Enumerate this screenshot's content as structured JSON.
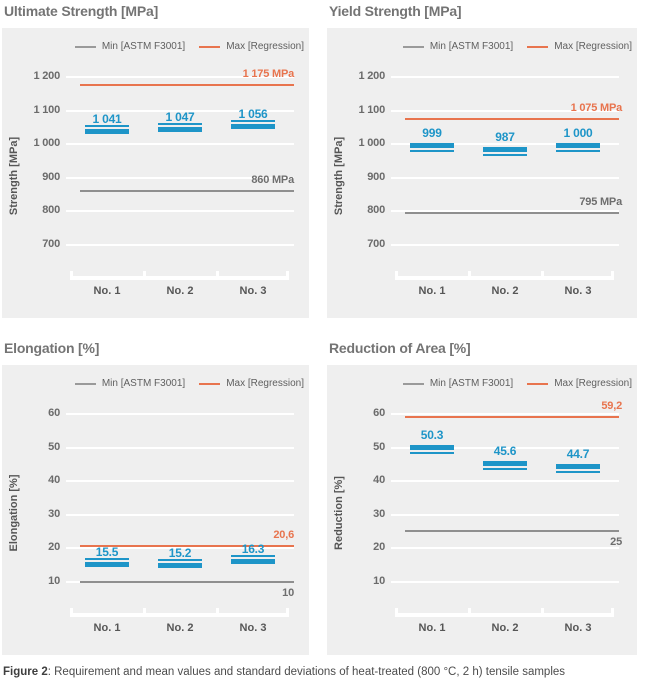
{
  "page": {
    "caption_prefix": "Figure 2",
    "caption_rest": ": Requirement and mean values and standard deviations of heat-treated (800 °C, 2 h) tensile samples"
  },
  "colors": {
    "data_blue": "#1e95c8",
    "max_orange": "#e8744e",
    "min_gray": "#8f8f8f",
    "min_label_gray": "#6e6e6e",
    "panel_bg": "#efefef",
    "gridline_white": "#ffffff",
    "legend_min_swatch": "#9a9a9a"
  },
  "chart_data": [
    {
      "type": "scatter",
      "title": "Ultimate Strength [MPa]",
      "ylabel": "Strength [MPa]",
      "legend": {
        "min": "Min [ASTM F3001]",
        "max": "Max [Regression]"
      },
      "ticks": [
        1200,
        1100,
        1000,
        900,
        800,
        700
      ],
      "tick_labels": [
        "1 200",
        "1 100",
        "1 000",
        "900",
        "800",
        "700"
      ],
      "tick_step": 100,
      "categories": [
        "No. 1",
        "No. 2",
        "No. 3"
      ],
      "values": [
        1041,
        1047,
        1056
      ],
      "value_labels": [
        "1 041",
        "1 047",
        "1 056"
      ],
      "whisker": "above",
      "min_line": {
        "value": 860,
        "label": "860 MPa",
        "label_side": "above"
      },
      "max_line": {
        "value": 1175,
        "label": "1 175 MPa",
        "label_side": "above"
      }
    },
    {
      "type": "scatter",
      "title": "Yield Strength [MPa]",
      "ylabel": "Strength [MPa]",
      "legend": {
        "min": "Min [ASTM F3001]",
        "max": "Max [Regression]"
      },
      "ticks": [
        1200,
        1100,
        1000,
        900,
        800,
        700
      ],
      "tick_labels": [
        "1 200",
        "1 100",
        "1 000",
        "900",
        "800",
        "700"
      ],
      "tick_step": 100,
      "categories": [
        "No. 1",
        "No. 2",
        "No. 3"
      ],
      "values": [
        999,
        987,
        1000
      ],
      "value_labels": [
        "999",
        "987",
        "1 000"
      ],
      "whisker": "below",
      "min_line": {
        "value": 795,
        "label": "795 MPa",
        "label_side": "above"
      },
      "max_line": {
        "value": 1075,
        "label": "1 075 MPa",
        "label_side": "above"
      }
    },
    {
      "type": "scatter",
      "title": "Elongation [%]",
      "ylabel": "Elongation [%]",
      "legend": {
        "min": "Min [ASTM F3001]",
        "max": "Max [Regression]"
      },
      "ticks": [
        60,
        50,
        40,
        30,
        20,
        10
      ],
      "tick_labels": [
        "60",
        "50",
        "40",
        "30",
        "20",
        "10"
      ],
      "tick_step": 10,
      "categories": [
        "No. 1",
        "No. 2",
        "No. 3"
      ],
      "values": [
        15.5,
        15.2,
        16.3
      ],
      "value_labels": [
        "15.5",
        "15.2",
        "16.3"
      ],
      "whisker": "above",
      "min_line": {
        "value": 10,
        "label": "10",
        "label_side": "below"
      },
      "max_line": {
        "value": 20.6,
        "label": "20,6",
        "label_side": "above"
      }
    },
    {
      "type": "scatter",
      "title": "Reduction of Area [%]",
      "ylabel": "Reduction [%]",
      "legend": {
        "min": "Min [ASTM F3001]",
        "max": "Max [Regression]"
      },
      "ticks": [
        60,
        50,
        40,
        30,
        20,
        10
      ],
      "tick_labels": [
        "60",
        "50",
        "40",
        "30",
        "20",
        "10"
      ],
      "tick_step": 10,
      "categories": [
        "No. 1",
        "No. 2",
        "No. 3"
      ],
      "values": [
        50.3,
        45.6,
        44.7
      ],
      "value_labels": [
        "50.3",
        "45.6",
        "44.7"
      ],
      "whisker": "below",
      "min_line": {
        "value": 25,
        "label": "25",
        "label_side": "below"
      },
      "max_line": {
        "value": 59.2,
        "label": "59,2",
        "label_side": "above"
      }
    }
  ]
}
